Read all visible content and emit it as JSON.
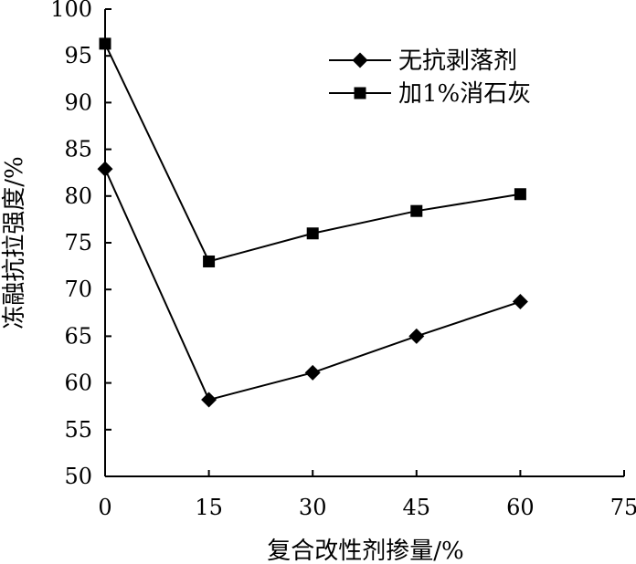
{
  "chart_data": {
    "type": "line",
    "xlabel": "复合改性剂掺量/%",
    "ylabel": "冻融抗拉强度/%",
    "xlim": [
      0,
      75
    ],
    "ylim": [
      50,
      100
    ],
    "x_ticks": [
      "0",
      "15",
      "30",
      "45",
      "60",
      "75"
    ],
    "y_ticks": [
      "50",
      "55",
      "60",
      "65",
      "70",
      "75",
      "80",
      "85",
      "90",
      "95",
      "100"
    ],
    "grid": false,
    "legend_position": "top-right",
    "series": [
      {
        "name": "无抗剥落剂",
        "marker": "diamond",
        "color": "#000000",
        "x": [
          0,
          15,
          30,
          45,
          60
        ],
        "y": [
          82.9,
          58.2,
          61.1,
          65.0,
          68.7
        ]
      },
      {
        "name": "加1%消石灰",
        "marker": "square",
        "color": "#000000",
        "x": [
          0,
          15,
          30,
          45,
          60
        ],
        "y": [
          96.3,
          73.0,
          76.0,
          78.4,
          80.2
        ]
      }
    ]
  }
}
